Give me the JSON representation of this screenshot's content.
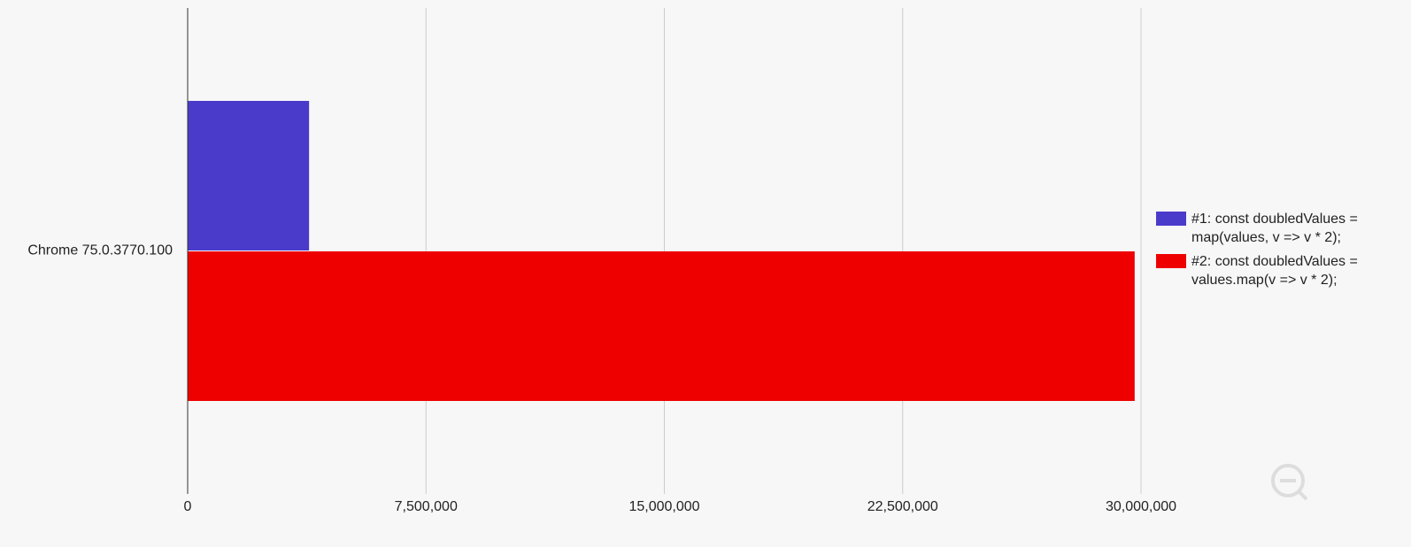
{
  "chart_data": {
    "type": "bar",
    "categories": [
      "Chrome 75.0.3770.100"
    ],
    "series": [
      {
        "name": "#1: const doubledValues = map(values, v => v * 2);",
        "color": "#4b3bcb",
        "values": [
          3820000
        ]
      },
      {
        "name": "#2: const doubledValues = values.map(v => v * 2);",
        "color": "#ee0000",
        "values": [
          29800000
        ]
      }
    ],
    "xlim": [
      0,
      30000000
    ],
    "xticks": [
      0,
      {
        "value": 7500000,
        "label": "7,500,000"
      },
      {
        "value": 15000000,
        "label": "15,000,000"
      },
      {
        "value": 22500000,
        "label": "22,500,000"
      },
      {
        "value": 30000000,
        "label": "30,000,000"
      }
    ],
    "grid": true,
    "legend": "right"
  }
}
